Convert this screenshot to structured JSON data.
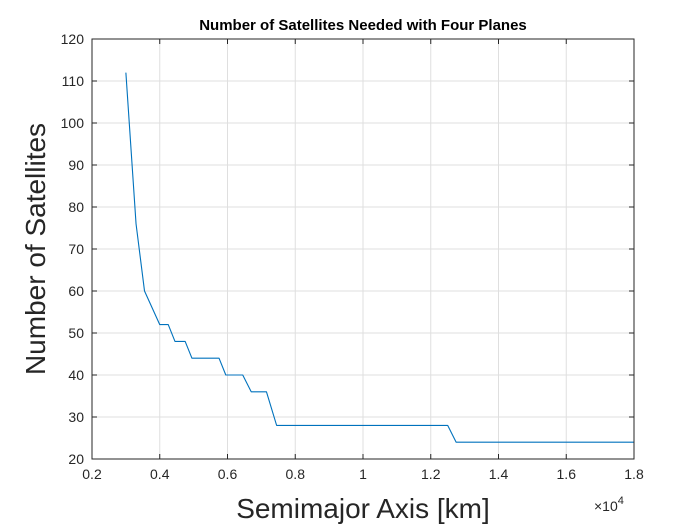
{
  "chart_data": {
    "type": "line",
    "title": "Number of Satellites Needed with Four Planes",
    "xlabel": "Semimajor Axis [km]",
    "ylabel": "Number of Satellites",
    "x_exponent_base": "×10",
    "x_exponent_power": "4",
    "xlim": [
      2000,
      18000
    ],
    "ylim": [
      20,
      120
    ],
    "grid": true,
    "x_ticks": [
      2000,
      4000,
      6000,
      8000,
      10000,
      12000,
      14000,
      16000,
      18000
    ],
    "x_tick_labels": [
      "0.2",
      "0.4",
      "0.6",
      "0.8",
      "1",
      "1.2",
      "1.4",
      "1.6",
      "1.8"
    ],
    "y_ticks": [
      20,
      30,
      40,
      50,
      60,
      70,
      80,
      90,
      100,
      110,
      120
    ],
    "y_tick_labels": [
      "20",
      "30",
      "40",
      "50",
      "60",
      "70",
      "80",
      "90",
      "100",
      "110",
      "120"
    ],
    "line_color": "#0072BD",
    "series": [
      {
        "x": [
          3000,
          3300,
          3550,
          4000,
          4250,
          4450,
          4750,
          4950,
          5750,
          5950,
          6450,
          6700,
          7150,
          7450,
          12500,
          12750,
          18000
        ],
        "y": [
          112,
          76,
          60,
          52,
          52,
          48,
          48,
          44,
          44,
          40,
          40,
          36,
          36,
          28,
          28,
          24,
          24
        ]
      }
    ]
  }
}
